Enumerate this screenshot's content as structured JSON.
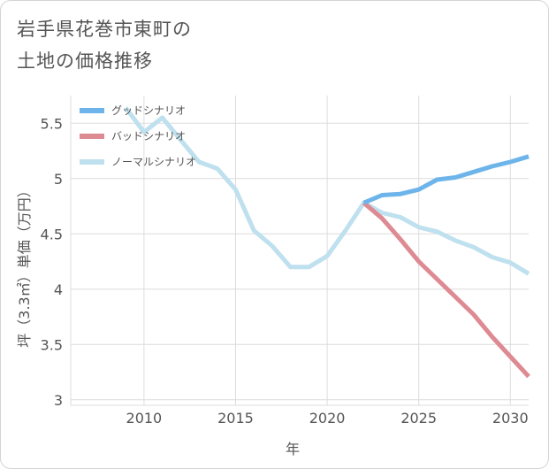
{
  "page": {
    "title_line1": "岩手県花巻市東町の",
    "title_line2": "土地の価格推移"
  },
  "colors": {
    "good": "#6cb4ea",
    "bad": "#de8a93",
    "normal": "#bfe0ee",
    "grid": "#dcdcdc",
    "text": "#555555"
  },
  "chart_data": {
    "type": "line",
    "title": "岩手県花巻市東町の土地の価格推移",
    "xlabel": "年",
    "ylabel": "坪（3.3㎡）単価（万円）",
    "xlim": [
      2006,
      2031
    ],
    "ylim": [
      2.95,
      5.75
    ],
    "x_ticks": [
      2010,
      2015,
      2020,
      2025,
      2030
    ],
    "y_ticks": [
      3,
      3.5,
      4,
      4.5,
      5,
      5.5
    ],
    "y_tick_labels": [
      "3",
      "3.5",
      "4",
      "4.5",
      "5",
      "5.5"
    ],
    "legend_position": "top-left",
    "series": [
      {
        "name": "グッドシナリオ",
        "key": "good",
        "x": [
          2022,
          2023,
          2024,
          2025,
          2026,
          2027,
          2028,
          2029,
          2030,
          2031
        ],
        "y": [
          4.78,
          4.85,
          4.86,
          4.9,
          4.99,
          5.01,
          5.06,
          5.11,
          5.15,
          5.2
        ]
      },
      {
        "name": "バッドシナリオ",
        "key": "bad",
        "x": [
          2022,
          2023,
          2024,
          2025,
          2026,
          2027,
          2028,
          2029,
          2030,
          2031
        ],
        "y": [
          4.78,
          4.64,
          4.45,
          4.25,
          4.09,
          3.93,
          3.77,
          3.57,
          3.39,
          3.21
        ]
      },
      {
        "name": "ノーマルシナリオ",
        "key": "normal",
        "x": [
          2009,
          2010,
          2011,
          2012,
          2013,
          2014,
          2015,
          2016,
          2017,
          2018,
          2019,
          2020,
          2021,
          2022,
          2023,
          2024,
          2025,
          2026,
          2027,
          2028,
          2029,
          2030,
          2031
        ],
        "y": [
          5.64,
          5.42,
          5.55,
          5.35,
          5.15,
          5.09,
          4.9,
          4.53,
          4.39,
          4.2,
          4.2,
          4.3,
          4.53,
          4.78,
          4.69,
          4.65,
          4.56,
          4.52,
          4.44,
          4.38,
          4.29,
          4.24,
          4.14
        ]
      }
    ]
  }
}
